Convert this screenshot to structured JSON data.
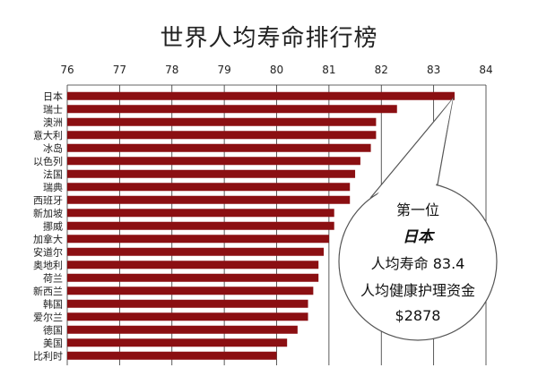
{
  "chart_data": {
    "type": "bar",
    "orientation": "horizontal",
    "title": "世界人均寿命排行榜",
    "xlim": [
      76,
      84
    ],
    "xticks": [
      76,
      77,
      78,
      79,
      80,
      81,
      82,
      83,
      84
    ],
    "grid": true,
    "bar_color": "#8b0f12",
    "categories": [
      "日本",
      "瑞士",
      "澳洲",
      "意大利",
      "冰岛",
      "以色列",
      "法国",
      "瑞典",
      "西班牙",
      "新加坡",
      "挪威",
      "加拿大",
      "安道尔",
      "奥地利",
      "荷兰",
      "新西兰",
      "韩国",
      "爱尔兰",
      "德国",
      "美国",
      "比利时"
    ],
    "values": [
      83.4,
      82.3,
      81.9,
      81.9,
      81.8,
      81.6,
      81.5,
      81.4,
      81.4,
      81.1,
      81.1,
      81.0,
      80.9,
      80.8,
      80.8,
      80.7,
      80.6,
      80.6,
      80.4,
      80.2,
      80.0
    ],
    "annotation": {
      "target_category": "日本",
      "lines": [
        "第一位",
        "日本",
        "人均寿命 83.4",
        "人均健康护理资金",
        "$2878"
      ]
    }
  }
}
